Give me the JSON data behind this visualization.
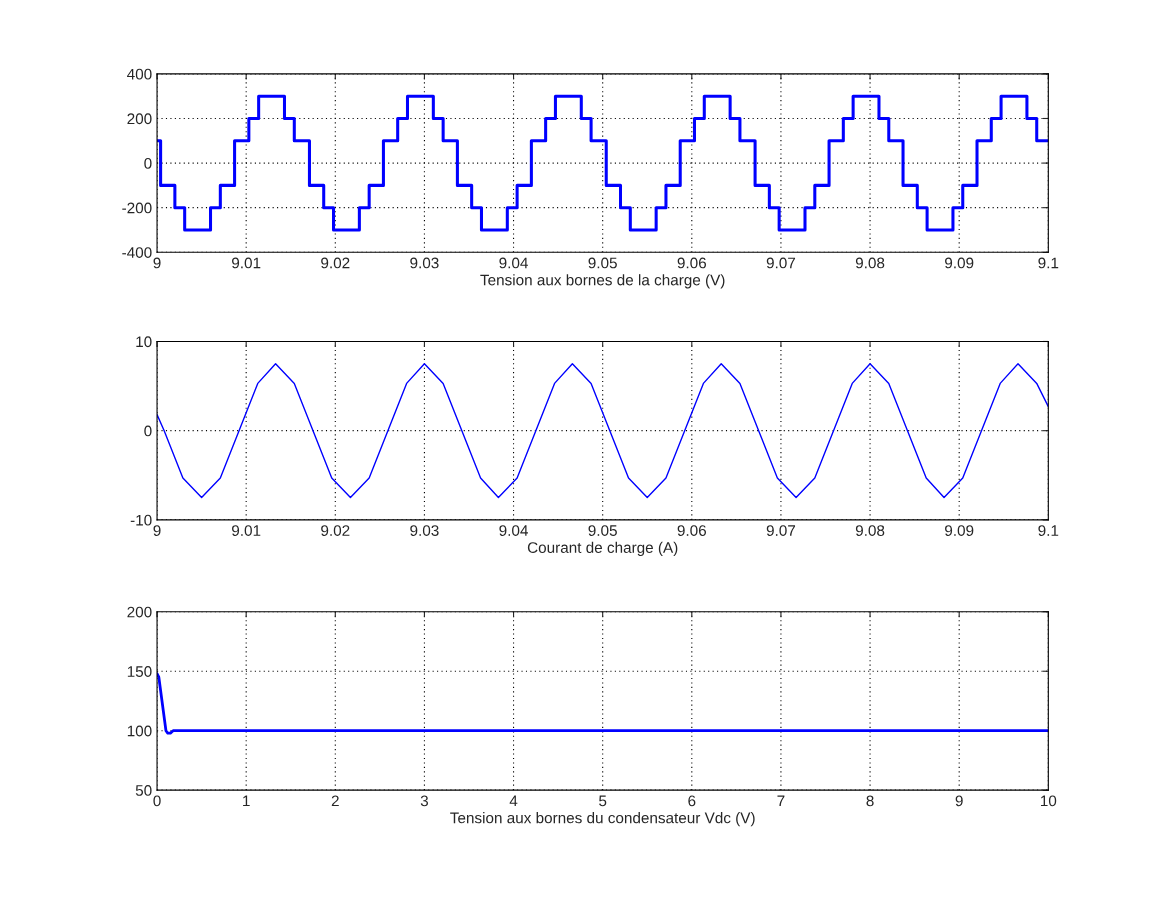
{
  "chart_data": [
    {
      "type": "step",
      "xlabel": "Tension aux bornes de la charge (V)",
      "xlim": [
        9,
        9.1
      ],
      "ylim": [
        -400,
        400
      ],
      "xticks": [
        9,
        9.01,
        9.02,
        9.03,
        9.04,
        9.05,
        9.06,
        9.07,
        9.08,
        9.09,
        9.1
      ],
      "yticks": [
        -400,
        -200,
        0,
        200,
        400
      ],
      "grid": true,
      "series": [
        {
          "color": "#0000ff",
          "x": [
            9.0,
            9.0004,
            9.002,
            9.0031,
            9.006,
            9.0071,
            9.0087,
            9.0103,
            9.0114,
            9.0143,
            9.0154,
            9.0171,
            9.0187,
            9.0198,
            9.0227,
            9.0238,
            9.0254,
            9.027,
            9.0281,
            9.031,
            9.0321,
            9.0337,
            9.0353,
            9.0364,
            9.0393,
            9.0404,
            9.042,
            9.0436,
            9.0447,
            9.0476,
            9.0487,
            9.0504,
            9.052,
            9.0531,
            9.056,
            9.0571,
            9.0587,
            9.0603,
            9.0614,
            9.0643,
            9.0654,
            9.0671,
            9.0687,
            9.0698,
            9.0727,
            9.0738,
            9.0754,
            9.077,
            9.0781,
            9.081,
            9.0821,
            9.0837,
            9.0853,
            9.0864,
            9.0893,
            9.0904,
            9.092,
            9.0936,
            9.0947,
            9.0976,
            9.0987,
            9.1
          ],
          "values": [
            100,
            -100,
            -200,
            -300,
            -200,
            -100,
            100,
            200,
            300,
            200,
            100,
            -100,
            -200,
            -300,
            -200,
            -100,
            100,
            200,
            300,
            200,
            100,
            -100,
            -200,
            -300,
            -200,
            -100,
            100,
            200,
            300,
            200,
            100,
            -100,
            -200,
            -300,
            -200,
            -100,
            100,
            200,
            300,
            200,
            100,
            -100,
            -200,
            -300,
            -200,
            -100,
            100,
            200,
            300,
            200,
            100,
            -100,
            -200,
            -300,
            -200,
            -100,
            100,
            200,
            300,
            200,
            100,
            100
          ]
        }
      ]
    },
    {
      "type": "line",
      "xlabel": "Courant de charge (A)",
      "xlim": [
        9,
        9.1
      ],
      "ylim": [
        -10,
        10
      ],
      "xticks": [
        9,
        9.01,
        9.02,
        9.03,
        9.04,
        9.05,
        9.06,
        9.07,
        9.08,
        9.09,
        9.1
      ],
      "yticks": [
        -10,
        0,
        10
      ],
      "grid": true,
      "series": [
        {
          "color": "#0000ff",
          "x": [
            9.0,
            9.0008,
            9.0029,
            9.005,
            9.0071,
            9.0092,
            9.0113,
            9.0133,
            9.0154,
            9.0175,
            9.0196,
            9.0217,
            9.0238,
            9.0259,
            9.028,
            9.03,
            9.0321,
            9.0342,
            9.0363,
            9.0383,
            9.0404,
            9.0425,
            9.0446,
            9.0466,
            9.0487,
            9.0508,
            9.0529,
            9.055,
            9.0571,
            9.0592,
            9.0613,
            9.0633,
            9.0654,
            9.0675,
            9.0696,
            9.0717,
            9.0738,
            9.0759,
            9.078,
            9.08,
            9.0821,
            9.0842,
            9.0863,
            9.0883,
            9.0904,
            9.0925,
            9.0946,
            9.0966,
            9.0987,
            9.1
          ],
          "values": [
            1.8,
            0,
            -5.3,
            -7.5,
            -5.3,
            0,
            5.3,
            7.5,
            5.3,
            0,
            -5.3,
            -7.5,
            -5.3,
            0,
            5.3,
            7.5,
            5.3,
            0,
            -5.3,
            -7.5,
            -5.3,
            0,
            5.3,
            7.5,
            5.3,
            0,
            -5.3,
            -7.5,
            -5.3,
            0,
            5.3,
            7.5,
            5.3,
            0,
            -5.3,
            -7.5,
            -5.3,
            0,
            5.3,
            7.5,
            5.3,
            0,
            -5.3,
            -7.5,
            -5.3,
            0,
            5.3,
            7.5,
            5.3,
            2.7
          ]
        }
      ]
    },
    {
      "type": "line",
      "xlabel": "Tension aux bornes du condensateur Vdc (V)",
      "xlim": [
        0,
        10
      ],
      "ylim": [
        50,
        200
      ],
      "xticks": [
        0,
        1,
        2,
        3,
        4,
        5,
        6,
        7,
        8,
        9,
        10
      ],
      "yticks": [
        50,
        100,
        150,
        200
      ],
      "grid": true,
      "series": [
        {
          "color": "#0000ff",
          "x": [
            0,
            0.02,
            0.1,
            0.12,
            0.15,
            0.18,
            10
          ],
          "values": [
            148,
            145,
            100,
            98,
            98,
            100,
            100
          ]
        }
      ]
    }
  ]
}
